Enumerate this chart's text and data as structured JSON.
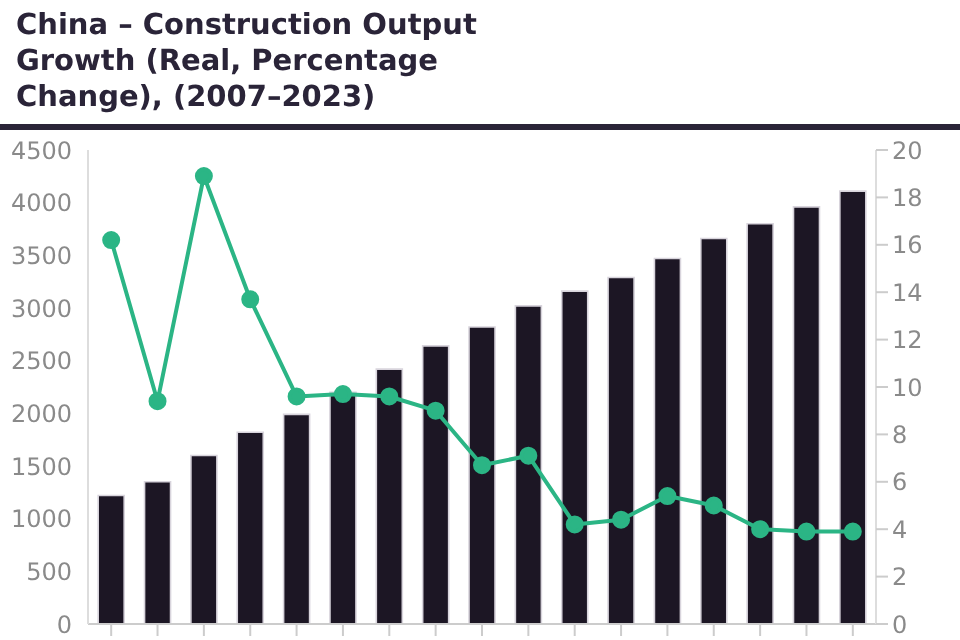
{
  "chart_data": {
    "type": "bar",
    "title": "China – Construction Output Growth (Real, Percentage Change), (2007–2023)",
    "categories": [
      null,
      null,
      null,
      null,
      null,
      null,
      null,
      null,
      null,
      null,
      null,
      null,
      null,
      null,
      null,
      null,
      null
    ],
    "series": [
      {
        "color": "#1c1624",
        "values": [
          1220,
          1350,
          1600,
          1820,
          1990,
          2200,
          2420,
          2640,
          2820,
          3020,
          3160,
          3290,
          3470,
          3660,
          3800,
          3960,
          4110
        ]
      },
      {
        "type": "line",
        "axis": "y2",
        "color": "#2bb585",
        "values": [
          16.2,
          9.4,
          18.9,
          13.7,
          9.6,
          9.7,
          9.6,
          9.0,
          6.7,
          7.1,
          4.2,
          4.4,
          5.4,
          5.0,
          4.0,
          3.9,
          3.9
        ]
      }
    ],
    "ylim": [
      0,
      4500
    ],
    "yticks": [
      0,
      500,
      1000,
      1500,
      2000,
      2500,
      3000,
      3500,
      4000,
      4500
    ],
    "y2lim": [
      0,
      20
    ],
    "y2ticks": [
      0,
      2,
      4,
      6,
      8,
      10,
      12,
      14,
      16,
      18,
      20
    ],
    "grid": false,
    "legend": false,
    "marker": "circle",
    "line_style": "solid"
  }
}
